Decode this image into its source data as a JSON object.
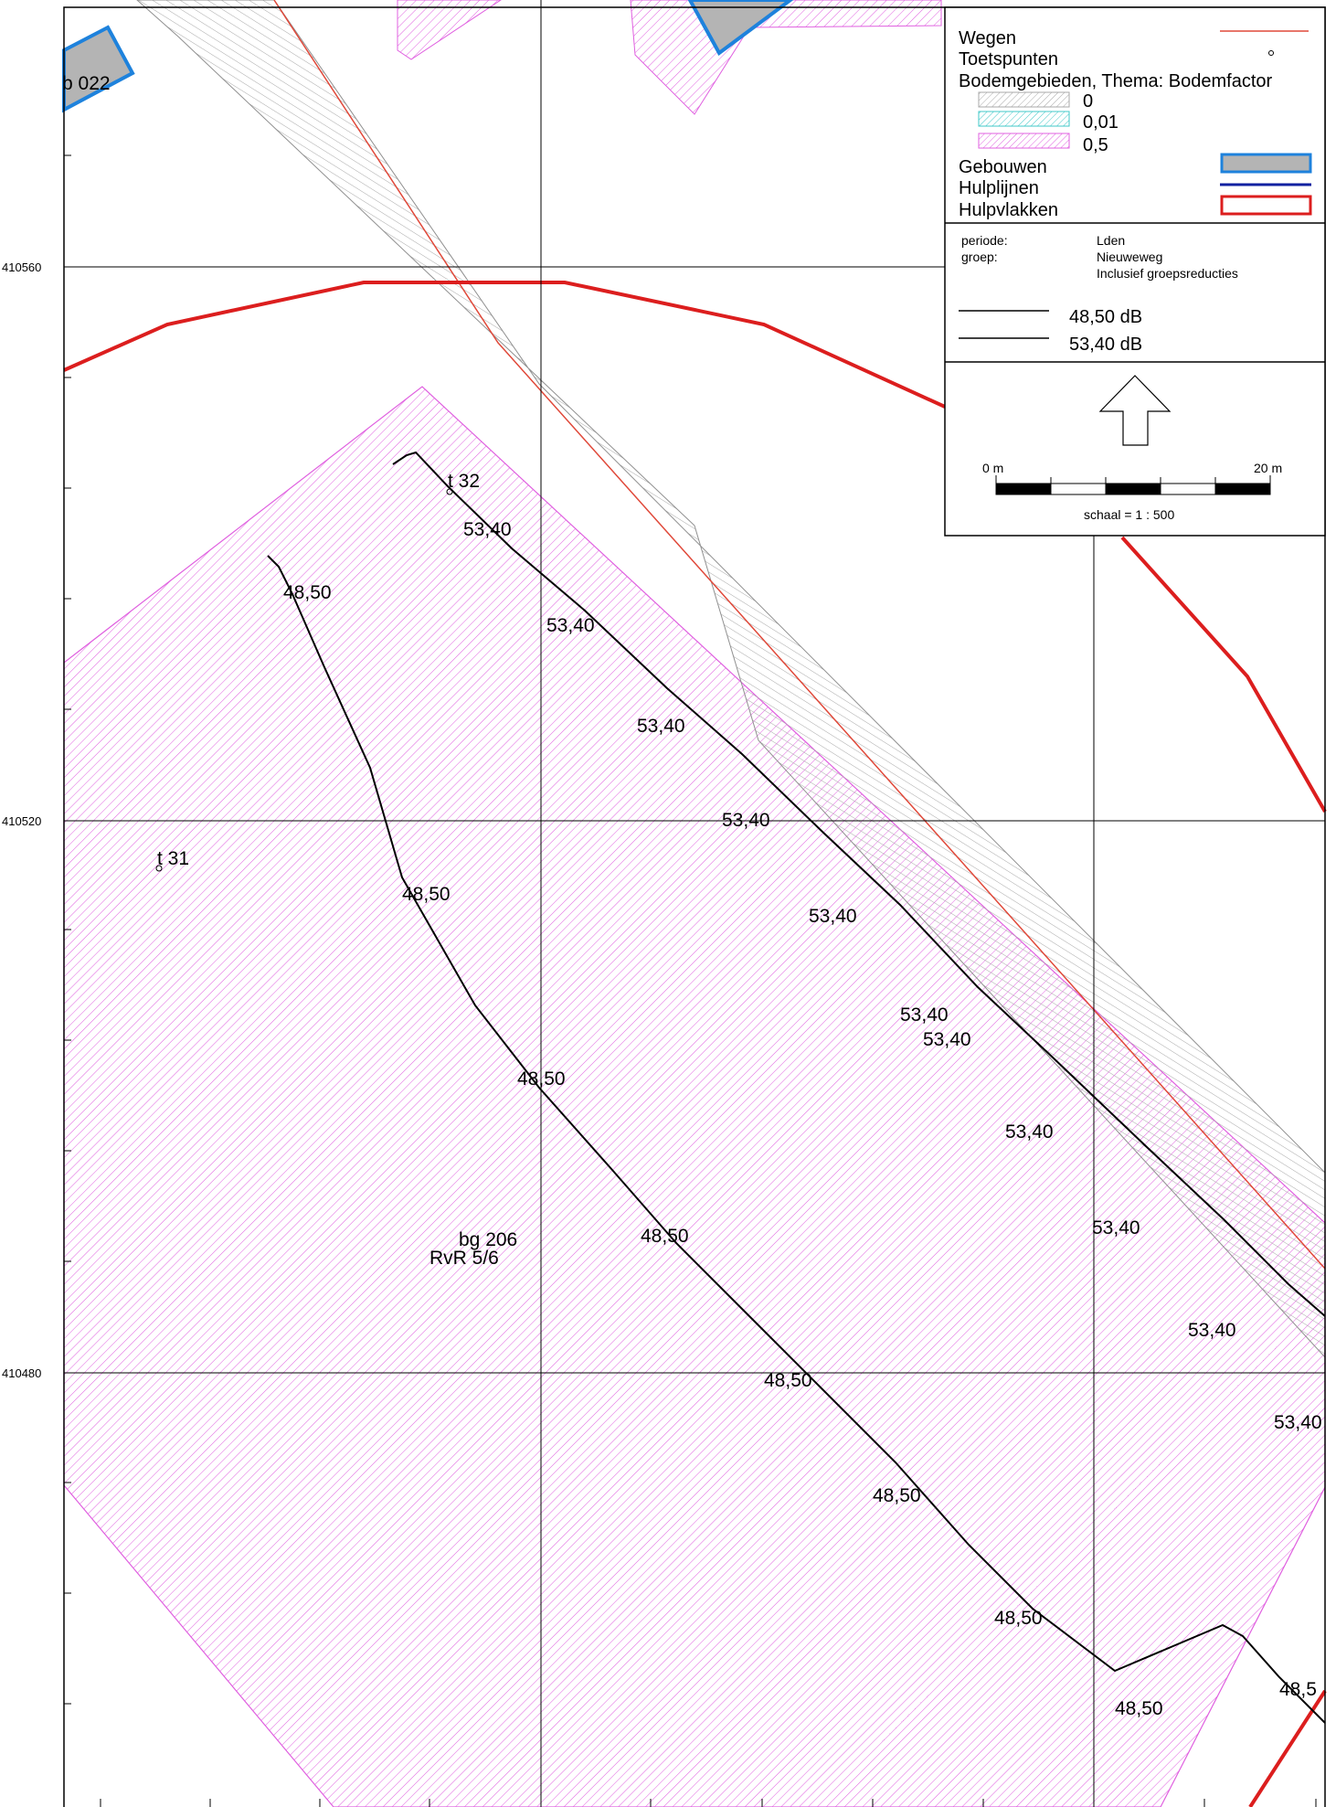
{
  "map": {
    "grid_labels": [
      "410560",
      "410520",
      "410480"
    ],
    "feature_labels": {
      "building_022": "b 022",
      "point_31": "t 31",
      "point_32": "t 32",
      "area_206": "bg 206",
      "area_206_sub": "RvR 5/6"
    },
    "contour_labels_upper": [
      "53,40",
      "53,40",
      "53,40",
      "53,40",
      "53,40",
      "53,40",
      "53,40",
      "53,40",
      "53,40",
      "53,40",
      "53,40"
    ],
    "contour_labels_lower": [
      "48,50",
      "48,50",
      "48,50",
      "48,50",
      "48,50",
      "48,50",
      "48,50",
      "48,50"
    ],
    "colors": {
      "road": "#e0493a",
      "building_fill": "#b4b4b4",
      "building_stroke": "#1e82dc",
      "helper_line": "#1020a0",
      "helper_area": "#dc1e1e",
      "soil_0": "#a8a8a8",
      "soil_001": "#40c8c8",
      "soil_05": "#e060e0"
    }
  },
  "legend": {
    "items": {
      "roads": "Wegen",
      "test_points": "Toetspunten",
      "soil_areas": "Bodemgebieden, Thema: Bodemfactor",
      "soil_0": "0",
      "soil_001": "0,01",
      "soil_05": "0,5",
      "buildings": "Gebouwen",
      "helper_lines": "Hulplijnen",
      "helper_areas": "Hulpvlakken"
    },
    "info": {
      "period_label": "periode:",
      "period_value": "Lden",
      "group_label": "groep:",
      "group_value": "Nieuweweg",
      "group_note": "Inclusief groepsreducties"
    },
    "contour_levels": [
      "48,50 dB",
      "53,40 dB"
    ],
    "scale": {
      "start": "0 m",
      "end": "20 m",
      "ratio": "schaal = 1 : 500"
    }
  }
}
